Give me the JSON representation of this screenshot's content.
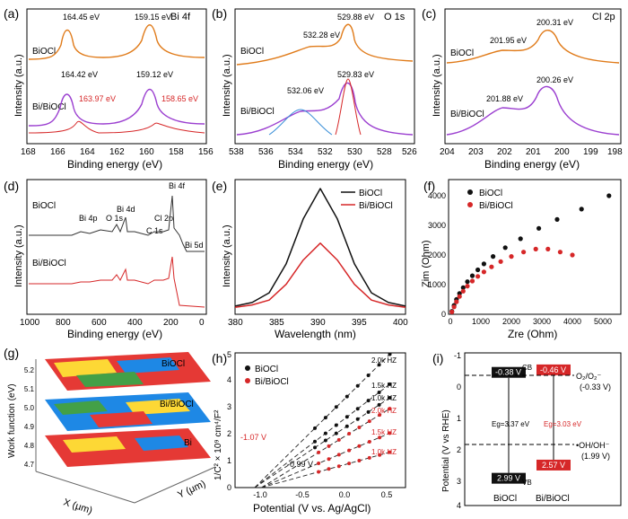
{
  "panels": {
    "a": {
      "letter": "(a)",
      "element": "Bi 4f",
      "xlabel": "Binding energy (eV)",
      "ylabel": "Intensity (a.u.)",
      "xticks": [
        "168",
        "166",
        "164",
        "162",
        "160",
        "158",
        "156"
      ],
      "samples": [
        "BiOCl",
        "Bi/BiOCl"
      ],
      "peaks_top": [
        "164.45 eV",
        "159.15 eV"
      ],
      "peaks_bottom": [
        "164.42 eV",
        "159.12 eV"
      ],
      "metal_peaks": [
        "163.97 eV",
        "158.65 eV"
      ]
    },
    "b": {
      "letter": "(b)",
      "element": "O 1s",
      "xlabel": "Binding energy (eV)",
      "ylabel": "Intensity (a.u.)",
      "xticks": [
        "538",
        "536",
        "534",
        "532",
        "530",
        "528",
        "526"
      ],
      "samples": [
        "BiOCl",
        "Bi/BiOCl"
      ],
      "peaks_top": [
        "532.28 eV",
        "529.88 eV"
      ],
      "peaks_bottom": [
        "532.06 eV",
        "529.83 eV"
      ]
    },
    "c": {
      "letter": "(c)",
      "element": "Cl 2p",
      "xlabel": "Binding energy (eV)",
      "ylabel": "Intensity (a.u.)",
      "xticks": [
        "204",
        "203",
        "202",
        "201",
        "200",
        "199",
        "198"
      ],
      "samples": [
        "BiOCl",
        "Bi/BiOCl"
      ],
      "peaks_top": [
        "201.95 eV",
        "200.31 eV"
      ],
      "peaks_bottom": [
        "201.88 eV",
        "200.26 eV"
      ]
    },
    "d": {
      "letter": "(d)",
      "xlabel": "Binding energy (eV)",
      "ylabel": "Intensity (a.u.)",
      "xticks": [
        "1000",
        "800",
        "600",
        "400",
        "200",
        "0"
      ],
      "samples": [
        "BiOCl",
        "Bi/BiOCl"
      ],
      "labels": [
        "Bi 4p",
        "O 1s",
        "Bi 4d",
        "C 1s",
        "Cl 2p",
        "Bi 4f",
        "Bi 5d"
      ]
    },
    "e": {
      "letter": "(e)",
      "xlabel": "Wavelength (nm)",
      "ylabel": "Intensity (a.u.)",
      "xticks": [
        "380",
        "385",
        "390",
        "395",
        "400"
      ],
      "legend": [
        "BiOCl",
        "Bi/BiOCl"
      ]
    },
    "f": {
      "letter": "(f)",
      "xlabel": "Zre (Ohm)",
      "ylabel": "Zim (Ohm)",
      "xticks": [
        "0",
        "1000",
        "2000",
        "3000",
        "4000",
        "5000"
      ],
      "yticks": [
        "0",
        "1000",
        "2000",
        "3000",
        "4000"
      ],
      "legend": [
        "BiOCl",
        "Bi/BiOCl"
      ]
    },
    "g": {
      "letter": "(g)",
      "ylabel": "Work function (eV)",
      "zticks": [
        "5.2",
        "5.1",
        "5.0",
        "4.9",
        "4.8",
        "4.7"
      ],
      "layers": [
        "BiOCl",
        "Bi/BiOCl",
        "Bi"
      ],
      "xaxis": "X (μm)",
      "yaxis": "Y (μm)"
    },
    "h": {
      "letter": "(h)",
      "xlabel": "Potential (V vs. Ag/AgCl)",
      "ylabel": "1/C² × 10⁹ cm⁴/F²",
      "xticks": [
        "-1.0",
        "-0.5",
        "0.0",
        "0.5"
      ],
      "yticks": [
        "0",
        "1",
        "2",
        "3",
        "4",
        "5"
      ],
      "legend": [
        "BiOCl",
        "Bi/BiOCl"
      ],
      "freq_black": [
        "2.0k HZ",
        "1.5k HZ",
        "1.0k HZ"
      ],
      "freq_red": [
        "2.0k HZ",
        "1.5k HZ",
        "1.0k HZ"
      ],
      "intercepts": [
        "-1.07 V",
        "-0.99 V"
      ]
    },
    "i": {
      "letter": "(i)",
      "ylabel": "Potential (V vs RHE)",
      "yticks": [
        "-1",
        "0",
        "1",
        "2",
        "3",
        "4"
      ],
      "cb": [
        "-0.38 V",
        "-0.46 V"
      ],
      "cb_label": "CB",
      "vb": [
        "2.99 V",
        "2.57 V"
      ],
      "vb_label": "VB",
      "eg": [
        "Eg=3.37 eV",
        "Eg=3.03 eV"
      ],
      "o2": "O₂/O₂⁻",
      "o2_v": "(-0.33 V)",
      "oh": "•OH/OH⁻",
      "oh_v": "(1.99 V)",
      "samples": [
        "BiOCl",
        "Bi/BiOCl"
      ]
    }
  },
  "colors": {
    "orange": "#e07b1a",
    "blue": "#3a8fd8",
    "purple": "#9b3fd0",
    "teal": "#22b0b0",
    "red": "#d62728",
    "black": "#111111"
  },
  "chart_data": [
    {
      "type": "line",
      "panel": "a",
      "title": "Bi 4f",
      "series": [
        {
          "name": "BiOCl",
          "peaks_eV": [
            164.45,
            159.15
          ]
        },
        {
          "name": "Bi/BiOCl",
          "peaks_eV": [
            164.42,
            159.12,
            163.97,
            158.65
          ]
        }
      ],
      "xlim": [
        168,
        156
      ]
    },
    {
      "type": "line",
      "panel": "b",
      "title": "O 1s",
      "series": [
        {
          "name": "BiOCl",
          "peaks_eV": [
            532.28,
            529.88
          ]
        },
        {
          "name": "Bi/BiOCl",
          "peaks_eV": [
            532.06,
            529.83
          ]
        }
      ],
      "xlim": [
        539,
        525
      ]
    },
    {
      "type": "line",
      "panel": "c",
      "title": "Cl 2p",
      "series": [
        {
          "name": "BiOCl",
          "peaks_eV": [
            201.95,
            200.31
          ]
        },
        {
          "name": "Bi/BiOCl",
          "peaks_eV": [
            201.88,
            200.26
          ]
        }
      ],
      "xlim": [
        204,
        198
      ]
    },
    {
      "type": "line",
      "panel": "e",
      "xlabel": "Wavelength (nm)",
      "x": [
        380,
        382,
        384,
        386,
        388,
        390,
        392,
        394,
        396,
        398,
        400
      ],
      "series": [
        {
          "name": "BiOCl",
          "values": [
            3,
            6,
            14,
            38,
            75,
            100,
            75,
            38,
            14,
            6,
            3
          ]
        },
        {
          "name": "Bi/BiOCl",
          "values": [
            2,
            4,
            8,
            21,
            41,
            55,
            41,
            21,
            8,
            4,
            2
          ]
        }
      ]
    },
    {
      "type": "scatter",
      "panel": "f",
      "series": [
        {
          "name": "BiOCl",
          "x": [
            50,
            120,
            200,
            300,
            420,
            560,
            720,
            900,
            1100,
            1400,
            1800,
            2300,
            2900,
            3500,
            4300,
            5200
          ],
          "y": [
            100,
            300,
            500,
            700,
            900,
            1100,
            1300,
            1500,
            1700,
            1950,
            2250,
            2550,
            2900,
            3200,
            3550,
            4000
          ]
        },
        {
          "name": "Bi/BiOCl",
          "x": [
            50,
            120,
            200,
            300,
            420,
            560,
            720,
            900,
            1100,
            1350,
            1650,
            2000,
            2400,
            2800,
            3200,
            3600,
            4000
          ],
          "y": [
            80,
            250,
            420,
            600,
            780,
            950,
            1120,
            1280,
            1430,
            1600,
            1780,
            1950,
            2100,
            2200,
            2200,
            2100,
            2000
          ]
        }
      ]
    },
    {
      "type": "line",
      "panel": "h",
      "series": [
        {
          "name": "BiOCl 2.0k HZ",
          "x": [
            -1.07,
            0.5
          ],
          "y": [
            0,
            4.9
          ]
        },
        {
          "name": "BiOCl 1.5k HZ",
          "x": [
            -1.07,
            0.5
          ],
          "y": [
            0,
            3.8
          ]
        },
        {
          "name": "BiOCl 1.0k HZ",
          "x": [
            -1.07,
            0.5
          ],
          "y": [
            0,
            3.3
          ]
        },
        {
          "name": "Bi/BiOCl 2.0k HZ",
          "x": [
            -0.99,
            0.5
          ],
          "y": [
            0,
            2.9
          ]
        },
        {
          "name": "Bi/BiOCl 1.5k HZ",
          "x": [
            -0.99,
            0.5
          ],
          "y": [
            0,
            2.0
          ]
        },
        {
          "name": "Bi/BiOCl 1.0k HZ",
          "x": [
            -0.99,
            0.5
          ],
          "y": [
            0,
            1.3
          ]
        }
      ],
      "xlim": [
        -1.3,
        0.7
      ],
      "ylim": [
        0,
        5
      ]
    },
    {
      "type": "bar",
      "panel": "i",
      "categories": [
        "BiOCl",
        "Bi/BiOCl"
      ],
      "series": [
        {
          "name": "CB",
          "values": [
            -0.38,
            -0.46
          ]
        },
        {
          "name": "VB",
          "values": [
            2.99,
            2.57
          ]
        }
      ],
      "ylim": [
        -1,
        4
      ]
    }
  ]
}
